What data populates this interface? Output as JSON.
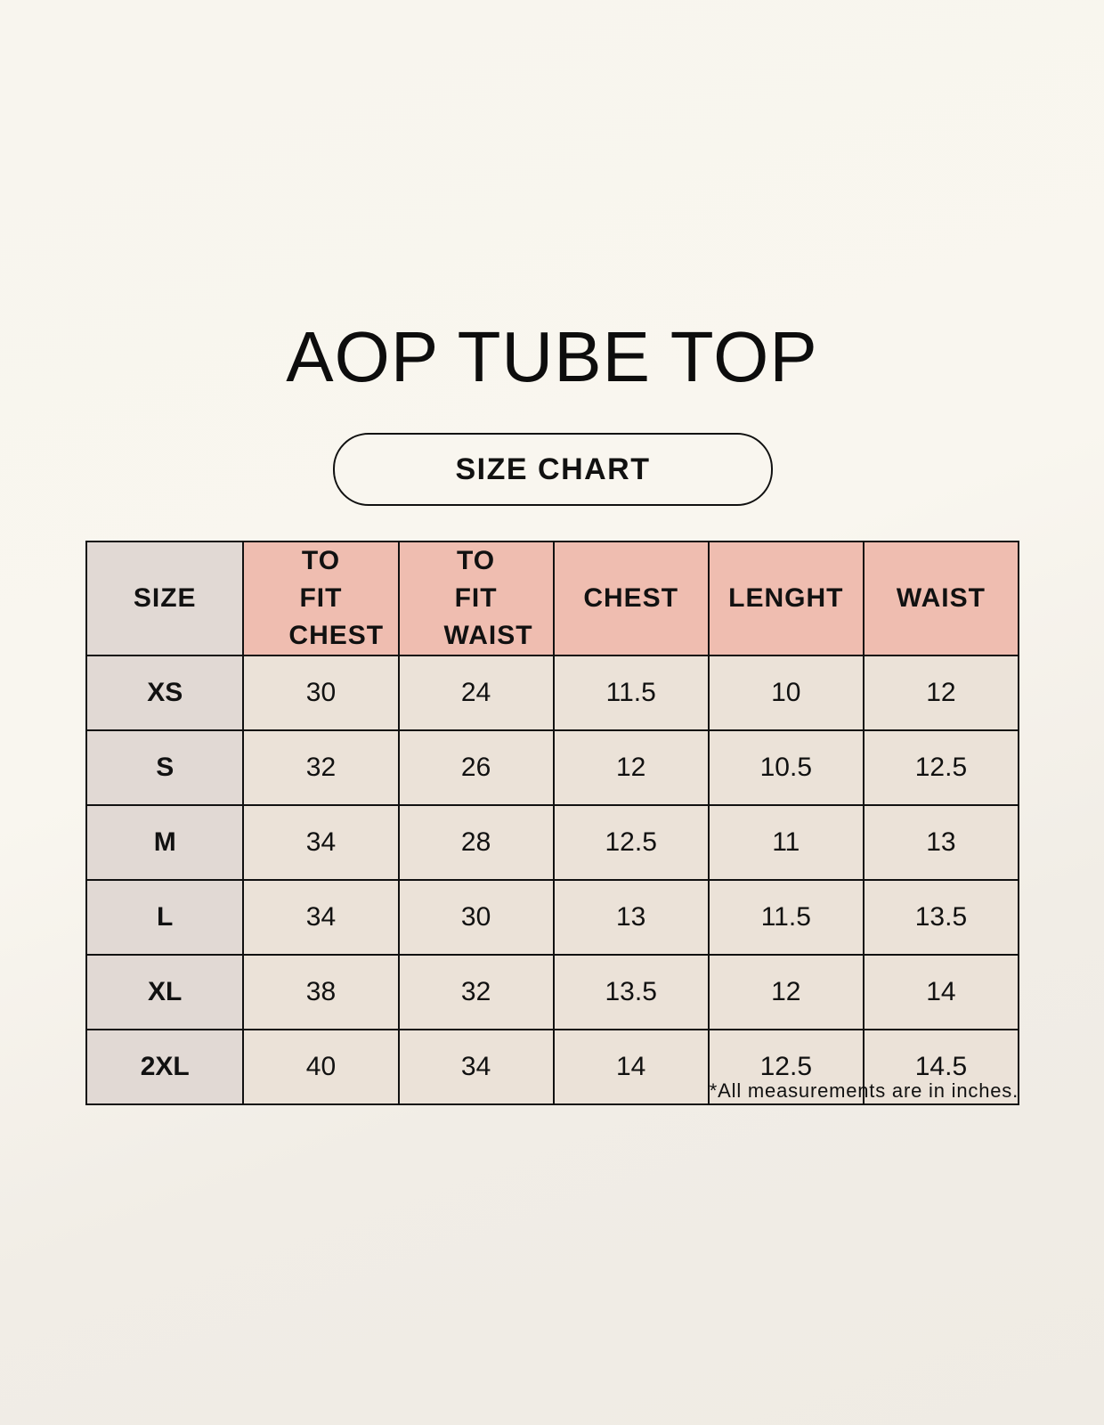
{
  "title": "AOP TUBE TOP",
  "subtitle": "SIZE CHART",
  "colors": {
    "header_accent": "#efbdb0",
    "size_column": "#e1d9d4",
    "cell": "#ebe2d8"
  },
  "table": {
    "headers": [
      "SIZE",
      "TO FIT CHEST",
      "TO FIT WAIST",
      "CHEST",
      "LENGHT",
      "WAIST"
    ],
    "rows": [
      [
        "XS",
        "30",
        "24",
        "11.5",
        "10",
        "12"
      ],
      [
        "S",
        "32",
        "26",
        "12",
        "10.5",
        "12.5"
      ],
      [
        "M",
        "34",
        "28",
        "12.5",
        "11",
        "13"
      ],
      [
        "L",
        "34",
        "30",
        "13",
        "11.5",
        "13.5"
      ],
      [
        "XL",
        "38",
        "32",
        "13.5",
        "12",
        "14"
      ],
      [
        "2XL",
        "40",
        "34",
        "14",
        "12.5",
        "14.5"
      ]
    ]
  },
  "footnote": "*All measurements are in inches."
}
